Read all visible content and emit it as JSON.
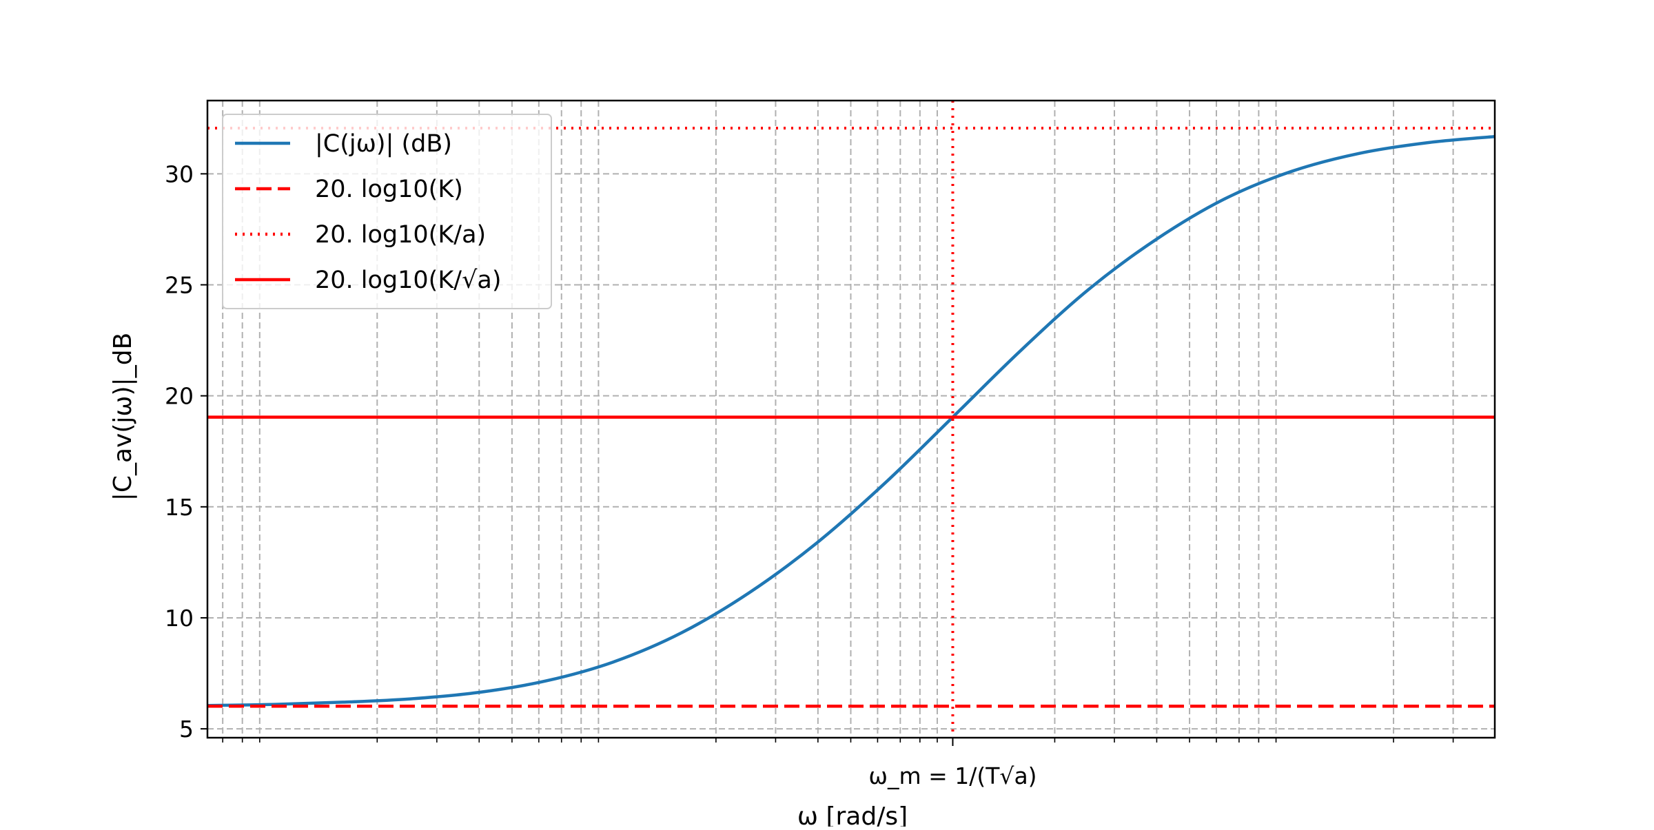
{
  "chart_data": {
    "type": "line",
    "x_scale": "log",
    "x_range_decades": [
      -2.2,
      1.6
    ],
    "ylim": [
      4.6,
      33.3
    ],
    "grid": true,
    "xlabel": "ω [rad/s]",
    "ylabel": "|C_av(jω)|_dB",
    "x_ticks": [
      {
        "label": "ω_m = 1/(T√a)",
        "x_decades": 0
      }
    ],
    "y_ticks": [
      5,
      10,
      15,
      20,
      25,
      30
    ],
    "legend_position": "upper left",
    "reference": {
      "K_dB": 6.02,
      "K_over_a_dB": 32.06,
      "K_over_sqrt_a_dB": 19.04,
      "omega_m_decades": 0
    },
    "series": [
      {
        "name": "|C(jω)| (dB)",
        "color": "#1f77b4",
        "style": "solid",
        "kind": "curve",
        "x_decades": [
          -2.2,
          -2.0,
          -1.8,
          -1.6,
          -1.4,
          -1.2,
          -1.0,
          -0.8,
          -0.6,
          -0.4,
          -0.2,
          0.0,
          0.2,
          0.4,
          0.6,
          0.8,
          1.0,
          1.2,
          1.4,
          1.6
        ],
        "values": [
          6.05,
          6.1,
          6.2,
          6.35,
          6.64,
          7.16,
          8.02,
          9.33,
          11.14,
          13.39,
          16.07,
          19.04,
          22.03,
          24.78,
          27.04,
          28.85,
          30.11,
          30.92,
          31.4,
          31.68
        ]
      },
      {
        "name": "20. log10(K)",
        "color": "#ff0000",
        "style": "dashed",
        "kind": "hline",
        "value": 6.02
      },
      {
        "name": "20. log10(K/a)",
        "color": "#ff0000",
        "style": "dotted",
        "kind": "hline",
        "value": 32.06
      },
      {
        "name": "20. log10(K/√a)",
        "color": "#ff0000",
        "style": "solid",
        "kind": "hline",
        "value": 19.04
      },
      {
        "name": "",
        "color": "#ff0000",
        "style": "dotted",
        "kind": "vline",
        "x_decades": 0
      }
    ],
    "legend": [
      {
        "label": "|C(jω)| (dB)",
        "color": "#1f77b4",
        "style": "solid"
      },
      {
        "label": "20. log10(K)",
        "color": "#ff0000",
        "style": "dashed"
      },
      {
        "label": "20. log10(K/a)",
        "color": "#ff0000",
        "style": "dotted"
      },
      {
        "label": "20. log10(K/√a)",
        "color": "#ff0000",
        "style": "solid"
      }
    ]
  }
}
